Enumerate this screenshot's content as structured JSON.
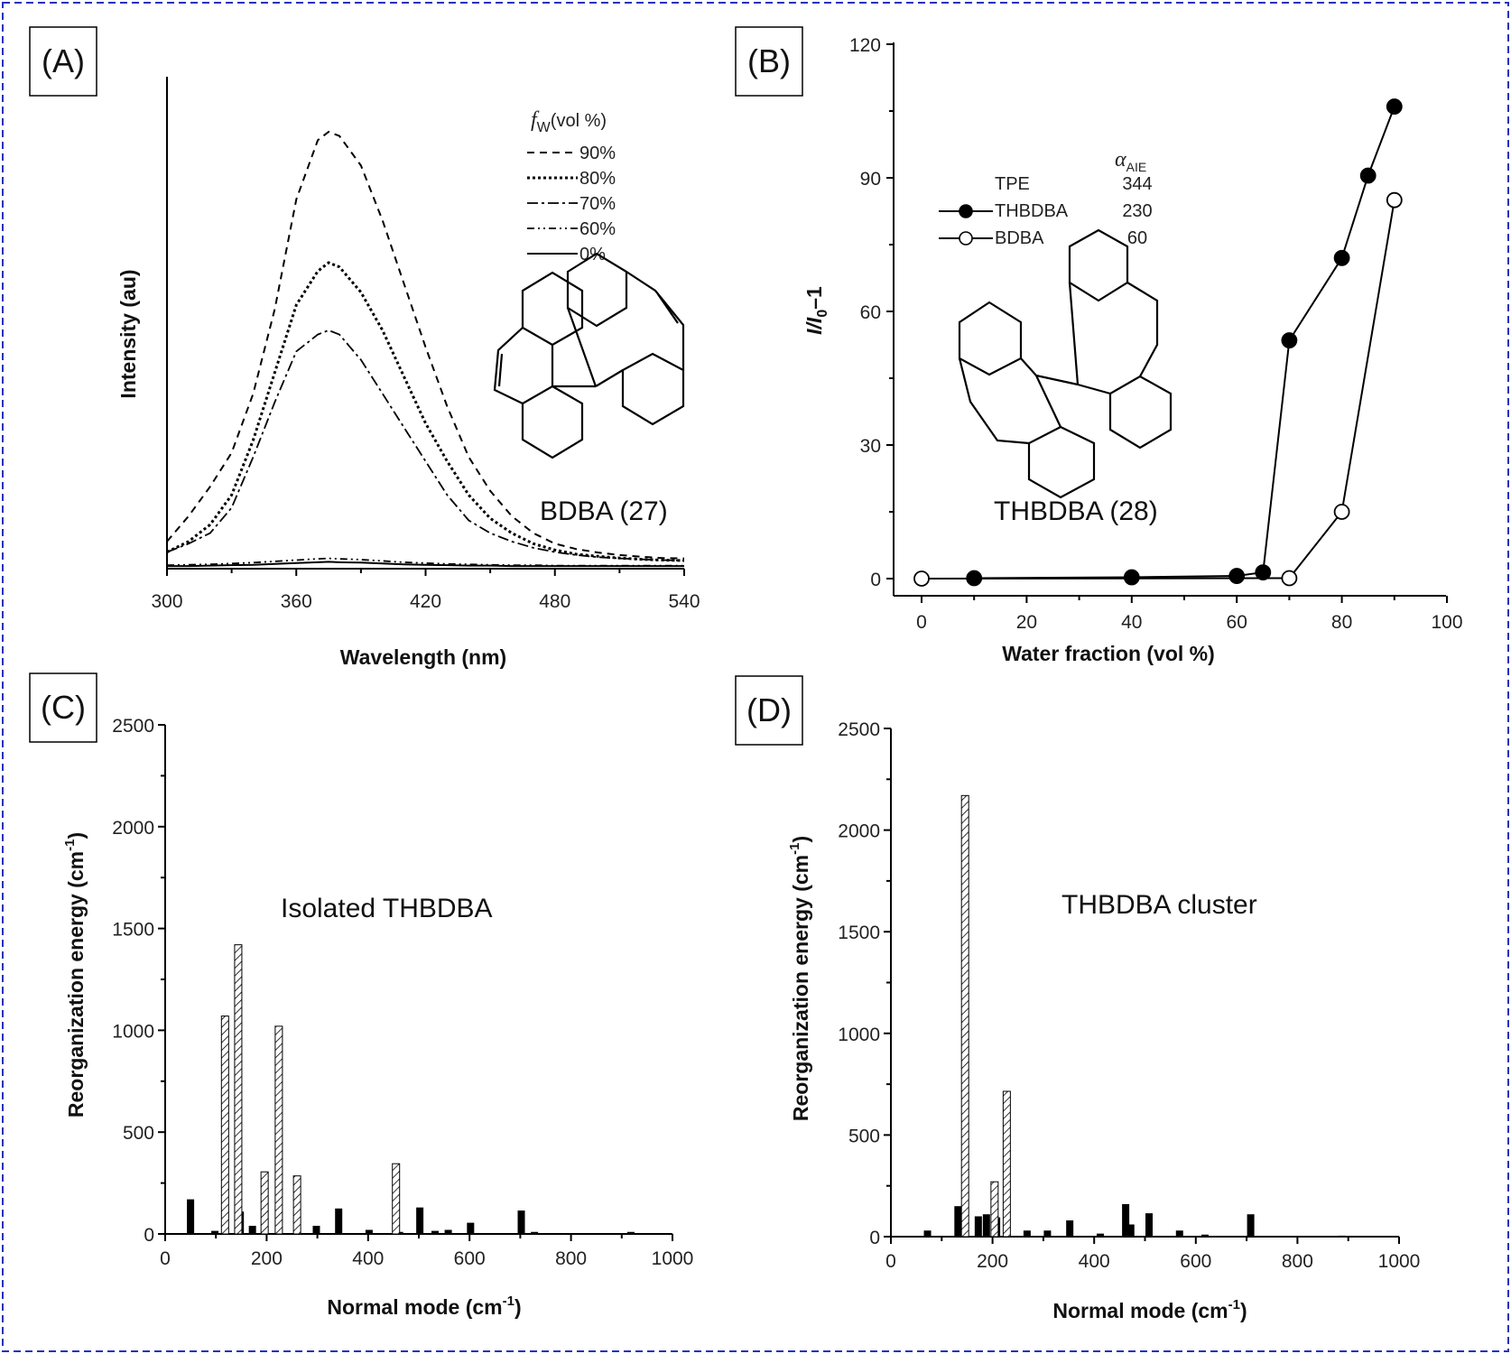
{
  "chart_data": [
    {
      "id": "A",
      "type": "line",
      "panel_label": "(A)",
      "xlabel": "Wavelength (nm)",
      "ylabel": "Intensity (au)",
      "xlim": [
        300,
        540
      ],
      "ylim": [
        0,
        120
      ],
      "xticks": [
        "300",
        "360",
        "420",
        "480",
        "540"
      ],
      "yticks_shown": false,
      "legend_title": "fw(vol %)",
      "legend_title_main": "f",
      "legend_title_sub": "W",
      "legend_title_rest": "(vol %)",
      "annotation": "BDBA (27)",
      "x": [
        300,
        310,
        320,
        330,
        340,
        350,
        360,
        370,
        375,
        380,
        390,
        400,
        410,
        420,
        430,
        440,
        450,
        460,
        470,
        480,
        490,
        500,
        510,
        520,
        530,
        540
      ],
      "series": [
        {
          "name": "90%",
          "values": [
            6,
            12,
            19,
            27,
            41,
            61,
            87,
            101,
            103,
            102,
            95,
            82,
            67,
            52,
            38,
            26,
            18,
            12,
            8,
            5.5,
            4.2,
            3.4,
            2.8,
            2.4,
            2.1,
            2.0
          ]
        },
        {
          "name": "80%",
          "values": [
            3.5,
            6,
            10,
            17,
            30,
            46,
            62,
            70,
            72,
            71,
            65,
            56,
            45,
            34,
            25,
            17,
            11.5,
            8,
            5.5,
            4,
            3,
            2.5,
            2.1,
            1.8,
            1.6,
            1.5
          ]
        },
        {
          "name": "70%",
          "values": [
            3.5,
            5.5,
            8,
            14,
            26,
            39,
            51,
            55,
            56,
            55,
            49,
            41,
            33,
            25,
            17,
            11,
            8,
            6,
            4.5,
            3.5,
            2.8,
            2.3,
            2,
            1.8,
            1.6,
            1.5
          ]
        },
        {
          "name": "60%",
          "values": [
            0.4,
            0.5,
            0.6,
            0.8,
            1.0,
            1.3,
            1.6,
            1.9,
            2.0,
            1.9,
            1.7,
            1.4,
            1.1,
            0.9,
            0.7,
            0.6,
            0.5,
            0.4,
            0.4,
            0.3,
            0.3,
            0.3,
            0.3,
            0.3,
            0.3,
            0.3
          ]
        },
        {
          "name": "0%",
          "values": [
            0.2,
            0.2,
            0.3,
            0.4,
            0.5,
            0.7,
            0.9,
            1.1,
            1.2,
            1.1,
            1.0,
            0.8,
            0.6,
            0.5,
            0.4,
            0.3,
            0.3,
            0.2,
            0.2,
            0.2,
            0.2,
            0.2,
            0.2,
            0.2,
            0.2,
            0.2
          ]
        }
      ]
    },
    {
      "id": "B",
      "type": "line",
      "panel_label": "(B)",
      "xlabel": "Water fraction  (vol %)",
      "ylabel_main": "I/I",
      "ylabel_sub": "0",
      "ylabel_rest": "–1",
      "xlim": [
        -5,
        100
      ],
      "ylim": [
        -3,
        120
      ],
      "xticks": [
        "0",
        "20",
        "40",
        "60",
        "80",
        "100"
      ],
      "yticks": [
        "0",
        "30",
        "60",
        "90",
        "120"
      ],
      "legend_header": "α",
      "legend_header_sub": "AIE",
      "legend": [
        {
          "name": "TPE",
          "alpha": "344",
          "marker": "none"
        },
        {
          "name": "THBDBA",
          "alpha": "230",
          "marker": "filled-circle"
        },
        {
          "name": "BDBA",
          "alpha": "60",
          "marker": "open-circle"
        }
      ],
      "annotation": "THBDBA (28)",
      "series": [
        {
          "name": "THBDBA",
          "x": [
            10,
            40,
            60,
            65,
            70,
            80,
            85,
            90
          ],
          "y": [
            0.1,
            0.3,
            0.6,
            1.4,
            53.5,
            72,
            90.5,
            106
          ]
        },
        {
          "name": "BDBA",
          "x": [
            0,
            70,
            80,
            90
          ],
          "y": [
            0,
            0.1,
            15,
            85
          ]
        }
      ]
    },
    {
      "id": "C",
      "type": "bar",
      "panel_label": "(C)",
      "xlabel": "Normal mode (cm",
      "xlabel_sup": "-1",
      "xlabel_end": ")",
      "ylabel": "Reorganization energy (cm",
      "ylabel_sup": "-1",
      "ylabel_end": ")",
      "xlim": [
        0,
        1000
      ],
      "ylim": [
        0,
        2500
      ],
      "xticks": [
        "0",
        "200",
        "400",
        "600",
        "800",
        "1000"
      ],
      "yticks": [
        "0",
        "500",
        "1000",
        "1500",
        "2000",
        "2500"
      ],
      "annotation": "Isolated THBDBA",
      "series": [
        {
          "name": "solid",
          "x": [
            50,
            98,
            148,
            172,
            298,
            342,
            402,
            462,
            502,
            532,
            558,
            602,
            702,
            728,
            918
          ],
          "values": [
            170,
            15,
            110,
            40,
            40,
            125,
            20,
            10,
            130,
            15,
            20,
            55,
            115,
            10,
            10
          ]
        },
        {
          "name": "hatched",
          "x": [
            118,
            144,
            196,
            224,
            260,
            455
          ],
          "values": [
            1070,
            1420,
            305,
            1020,
            285,
            345
          ]
        }
      ]
    },
    {
      "id": "D",
      "type": "bar",
      "panel_label": "(D)",
      "xlabel": "Normal mode (cm",
      "xlabel_sup": "-1",
      "xlabel_end": ")",
      "ylabel": "Reorganization energy (cm",
      "ylabel_sup": "-1",
      "ylabel_end": ")",
      "xlim": [
        0,
        1000
      ],
      "ylim": [
        0,
        2500
      ],
      "xticks": [
        "0",
        "200",
        "400",
        "600",
        "800",
        "1000"
      ],
      "yticks": [
        "0",
        "500",
        "1000",
        "1500",
        "2000",
        "2500"
      ],
      "annotation": "THBDBA cluster",
      "series": [
        {
          "name": "solid",
          "x": [
            72,
            132,
            172,
            188,
            208,
            268,
            308,
            352,
            412,
            462,
            472,
            508,
            568,
            618,
            708,
            888
          ],
          "values": [
            30,
            150,
            100,
            110,
            95,
            30,
            30,
            80,
            15,
            160,
            60,
            115,
            30,
            10,
            110,
            5
          ]
        },
        {
          "name": "hatched",
          "x": [
            146,
            204,
            228
          ],
          "values": [
            2170,
            270,
            715
          ]
        }
      ]
    }
  ]
}
